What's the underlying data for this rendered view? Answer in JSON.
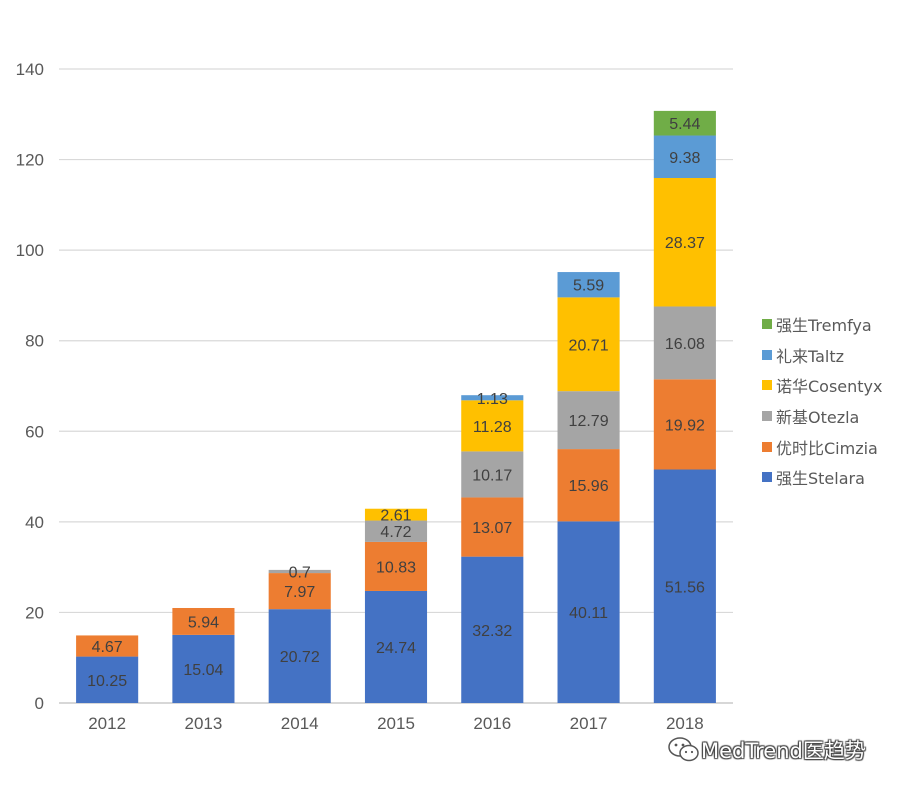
{
  "chart_data": {
    "type": "bar",
    "stacked": true,
    "categories": [
      "2012",
      "2013",
      "2014",
      "2015",
      "2016",
      "2017",
      "2018"
    ],
    "series": [
      {
        "name": "强生Stelara",
        "color": "#4472C4",
        "values": [
          10.25,
          15.04,
          20.72,
          24.74,
          32.32,
          40.11,
          51.56
        ]
      },
      {
        "name": "优时比Cimzia",
        "color": "#ED7D31",
        "values": [
          4.67,
          5.94,
          7.97,
          10.83,
          13.07,
          15.96,
          19.92
        ]
      },
      {
        "name": "新基Otezla",
        "color": "#A5A5A5",
        "values": [
          null,
          null,
          0.7,
          4.72,
          10.17,
          12.79,
          16.08
        ]
      },
      {
        "name": "诺华Cosentyx",
        "color": "#FFC000",
        "values": [
          null,
          null,
          null,
          2.61,
          11.28,
          20.71,
          28.37
        ]
      },
      {
        "name": "礼来Taltz",
        "color": "#5B9BD5",
        "values": [
          null,
          null,
          null,
          null,
          1.13,
          5.59,
          9.38
        ]
      },
      {
        "name": "强生Tremfya",
        "color": "#70AD47",
        "values": [
          null,
          null,
          null,
          null,
          null,
          null,
          5.44
        ]
      }
    ],
    "ylim": [
      0,
      140
    ],
    "yticks": [
      "0",
      "20",
      "40",
      "60",
      "80",
      "100",
      "120",
      "140"
    ],
    "title": "",
    "xlabel": "",
    "ylabel": "",
    "grid": true,
    "legend_position": "right"
  },
  "watermark": {
    "text": "MedTrend医趋势",
    "icon": "wechat-icon"
  }
}
